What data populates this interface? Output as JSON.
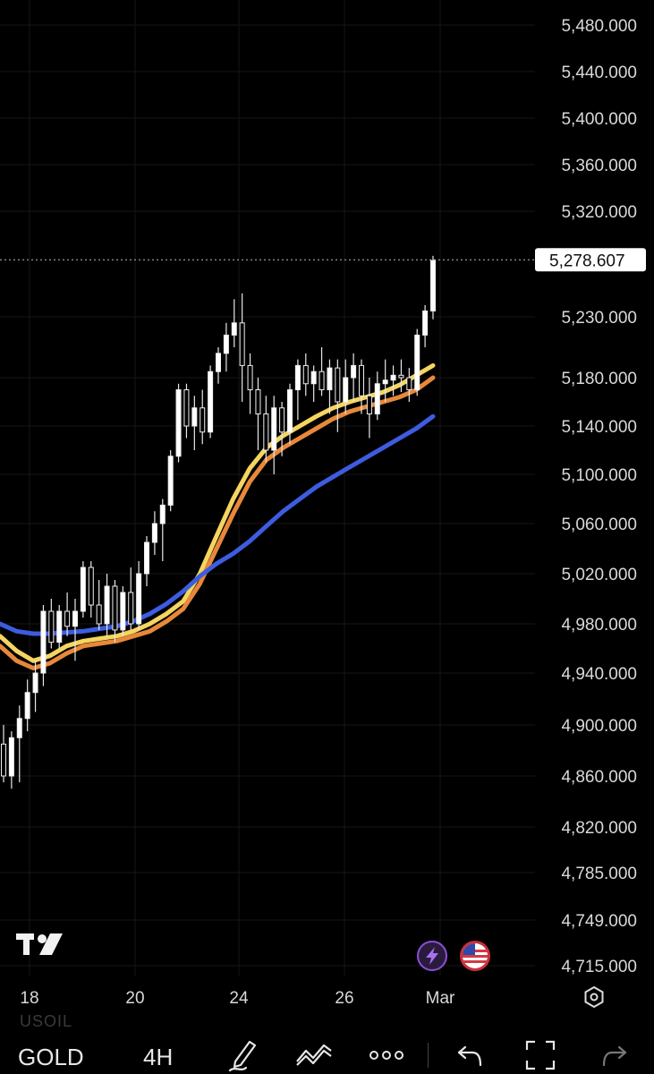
{
  "symbol": "GOLD",
  "ghost_symbol": "USOIL",
  "interval": "4H",
  "current_price": "5,278.607",
  "colors": {
    "background": "#000000",
    "candle_up": "#ffffff",
    "ema_fast": "#f5d560",
    "ema_mid": "#e8883a",
    "ema_slow": "#3d5ce0",
    "price_line": "#bbbbbb"
  },
  "icons": {
    "logo": "tradingview-logo-icon",
    "flash": "lightning-icon",
    "flag": "us-flag-icon",
    "settings": "gear-icon",
    "draw": "pen-icon",
    "indicators": "indicators-icon",
    "more": "more-icon",
    "undo": "undo-icon",
    "fullscreen": "fullscreen-icon",
    "redo": "redo-icon"
  },
  "chart_data": {
    "type": "candlestick",
    "y_axis_labels": [
      "5,480.000",
      "5,440.000",
      "5,400.000",
      "5,360.000",
      "5,320.000",
      "5,230.000",
      "5,180.000",
      "5,140.000",
      "5,100.000",
      "5,060.000",
      "5,020.000",
      "4,980.000",
      "4,940.000",
      "4,900.000",
      "4,860.000",
      "4,820.000",
      "4,785.000",
      "4,749.000",
      "4,715.000"
    ],
    "x_axis_labels": [
      "18",
      "20",
      "24",
      "26",
      "Mar"
    ],
    "ylim": [
      4705,
      5495
    ],
    "candles": [
      [
        4885,
        4900,
        4855,
        4860
      ],
      [
        4860,
        4895,
        4850,
        4890
      ],
      [
        4890,
        4915,
        4855,
        4905
      ],
      [
        4905,
        4935,
        4895,
        4925
      ],
      [
        4925,
        4950,
        4910,
        4940
      ],
      [
        4940,
        4995,
        4930,
        4990
      ],
      [
        4990,
        5000,
        4960,
        4965
      ],
      [
        4965,
        4995,
        4960,
        4990
      ],
      [
        4990,
        5005,
        4970,
        4978
      ],
      [
        4978,
        5000,
        4950,
        4990
      ],
      [
        4990,
        5030,
        4985,
        5025
      ],
      [
        5025,
        5030,
        4985,
        4995
      ],
      [
        4995,
        5015,
        4975,
        4980
      ],
      [
        4980,
        5020,
        4970,
        5010
      ],
      [
        5010,
        5015,
        4965,
        4975
      ],
      [
        4975,
        5010,
        4970,
        5005
      ],
      [
        5005,
        5025,
        4975,
        4980
      ],
      [
        4980,
        5030,
        4975,
        5020
      ],
      [
        5020,
        5050,
        5010,
        5045
      ],
      [
        5045,
        5070,
        5035,
        5060
      ],
      [
        5060,
        5080,
        5030,
        5075
      ],
      [
        5075,
        5120,
        5070,
        5115
      ],
      [
        5115,
        5175,
        5110,
        5170
      ],
      [
        5170,
        5175,
        5130,
        5140
      ],
      [
        5140,
        5165,
        5120,
        5155
      ],
      [
        5155,
        5170,
        5125,
        5135
      ],
      [
        5135,
        5190,
        5130,
        5185
      ],
      [
        5185,
        5205,
        5175,
        5200
      ],
      [
        5200,
        5225,
        5185,
        5215
      ],
      [
        5215,
        5245,
        5205,
        5225
      ],
      [
        5225,
        5250,
        5160,
        5190
      ],
      [
        5190,
        5200,
        5150,
        5170
      ],
      [
        5170,
        5180,
        5120,
        5150
      ],
      [
        5150,
        5165,
        5110,
        5120
      ],
      [
        5120,
        5165,
        5100,
        5155
      ],
      [
        5155,
        5160,
        5115,
        5135
      ],
      [
        5135,
        5175,
        5125,
        5170
      ],
      [
        5170,
        5195,
        5145,
        5190
      ],
      [
        5190,
        5200,
        5165,
        5175
      ],
      [
        5175,
        5190,
        5160,
        5185
      ],
      [
        5185,
        5205,
        5165,
        5170
      ],
      [
        5170,
        5195,
        5150,
        5188
      ],
      [
        5188,
        5195,
        5135,
        5160
      ],
      [
        5160,
        5195,
        5150,
        5180
      ],
      [
        5180,
        5200,
        5160,
        5190
      ],
      [
        5190,
        5195,
        5150,
        5165
      ],
      [
        5165,
        5180,
        5130,
        5150
      ],
      [
        5150,
        5185,
        5145,
        5175
      ],
      [
        5175,
        5195,
        5160,
        5178
      ],
      [
        5178,
        5190,
        5165,
        5182
      ],
      [
        5182,
        5195,
        5168,
        5180
      ],
      [
        5180,
        5188,
        5160,
        5170
      ],
      [
        5170,
        5220,
        5165,
        5215
      ],
      [
        5215,
        5240,
        5205,
        5235
      ],
      [
        5235,
        5282,
        5228,
        5278
      ]
    ],
    "series": [
      {
        "name": "",
        "color_key": "ema_fast",
        "values": [
          4970,
          4958,
          4950,
          4954,
          4962,
          4966,
          4968,
          4970,
          4974,
          4980,
          4988,
          4998,
          5020,
          5050,
          5080,
          5105,
          5122,
          5132,
          5140,
          5148,
          5155,
          5160,
          5164,
          5168,
          5174,
          5182,
          5190
        ]
      },
      {
        "name": "",
        "color_key": "ema_mid",
        "values": [
          4962,
          4950,
          4944,
          4948,
          4956,
          4962,
          4964,
          4966,
          4970,
          4974,
          4982,
          4992,
          5012,
          5040,
          5068,
          5094,
          5112,
          5122,
          5130,
          5138,
          5146,
          5152,
          5156,
          5160,
          5164,
          5170,
          5180
        ]
      },
      {
        "name": "",
        "color_key": "ema_slow",
        "values": [
          4980,
          4974,
          4972,
          4972,
          4973,
          4974,
          4976,
          4978,
          4982,
          4988,
          4996,
          5006,
          5018,
          5028,
          5036,
          5046,
          5058,
          5070,
          5080,
          5090,
          5098,
          5106,
          5114,
          5122,
          5130,
          5138,
          5148
        ]
      }
    ]
  }
}
